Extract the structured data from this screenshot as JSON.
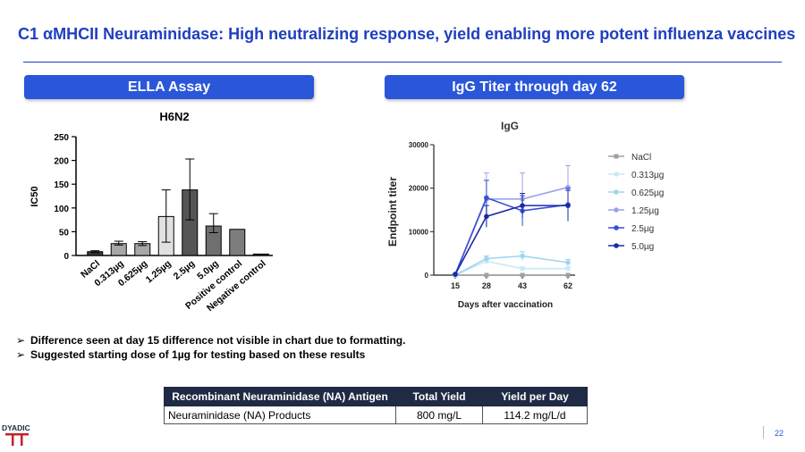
{
  "slide": {
    "title": "C1 αMHCII Neuraminidase: High neutralizing response, yield enabling more potent influenza vaccines",
    "left_pill": "ELLA Assay",
    "right_pill": "IgG Titer through day 62",
    "page_number": "22",
    "logo_text": "DYADIC"
  },
  "bullets": [
    "Difference seen at day 15 difference not visible in chart due to formatting.",
    "Suggested starting dose of 1µg for testing based on these results"
  ],
  "table": {
    "headers": [
      "Recombinant Neuraminidase (NA) Antigen",
      "Total Yield",
      "Yield per Day"
    ],
    "rows": [
      [
        "Neuraminidase (NA) Products",
        "800 mg/L",
        "114.2 mg/L/d"
      ]
    ]
  },
  "chart_data": [
    {
      "type": "bar",
      "title": "H6N2",
      "xlabel": "",
      "ylabel": "IC50",
      "ylim": [
        0,
        250
      ],
      "yticks": [
        0,
        50,
        100,
        150,
        200,
        250
      ],
      "categories": [
        "NaCl",
        "0.313µg",
        "0.625µg",
        "1.25µg",
        "2.5µg",
        "5.0µg",
        "Positive control",
        "Negative control"
      ],
      "values": [
        8,
        25,
        25,
        82,
        138,
        62,
        55,
        3
      ],
      "err_low": [
        6,
        22,
        21,
        28,
        75,
        48,
        55,
        3
      ],
      "err_high": [
        10,
        30,
        29,
        138,
        203,
        88,
        55,
        3
      ],
      "colors": [
        "#3a3a3a",
        "#a7a7a7",
        "#a7a7a7",
        "#e0e0e0",
        "#555555",
        "#6f6f6f",
        "#7d7d7d",
        "#2a2a2a"
      ]
    },
    {
      "type": "line",
      "title": "IgG",
      "xlabel": "Days after vaccination",
      "ylabel": "Endpoint titer",
      "x": [
        15,
        28,
        43,
        62
      ],
      "ylim": [
        0,
        30000
      ],
      "yticks": [
        0,
        10000,
        20000,
        30000
      ],
      "series": [
        {
          "name": "NaCl",
          "values": [
            0,
            0,
            0,
            0
          ],
          "err": [
            0,
            0,
            0,
            0
          ],
          "color": "#9aa39a",
          "marker": "square"
        },
        {
          "name": "0.313µg",
          "values": [
            0,
            3200,
            1500,
            1500
          ],
          "err": [
            0,
            400,
            400,
            400
          ],
          "color": "#c9e9f5",
          "marker": "circle"
        },
        {
          "name": "0.625µg",
          "values": [
            0,
            3800,
            4400,
            2900
          ],
          "err": [
            0,
            600,
            1000,
            700
          ],
          "color": "#9fd6ef",
          "marker": "circle"
        },
        {
          "name": "1.25µg",
          "values": [
            200,
            17500,
            17500,
            20200
          ],
          "err": [
            0,
            6000,
            6000,
            5000
          ],
          "color": "#9aa3ea",
          "marker": "circle"
        },
        {
          "name": "2.5µg",
          "values": [
            200,
            17800,
            14800,
            16200
          ],
          "err": [
            0,
            4000,
            3500,
            3800
          ],
          "color": "#3a4fd6",
          "marker": "circle"
        },
        {
          "name": "5.0µg",
          "values": [
            200,
            13500,
            16000,
            16000
          ],
          "err": [
            0,
            2500,
            2800,
            3500
          ],
          "color": "#1a2aa8",
          "marker": "circle"
        }
      ]
    }
  ]
}
